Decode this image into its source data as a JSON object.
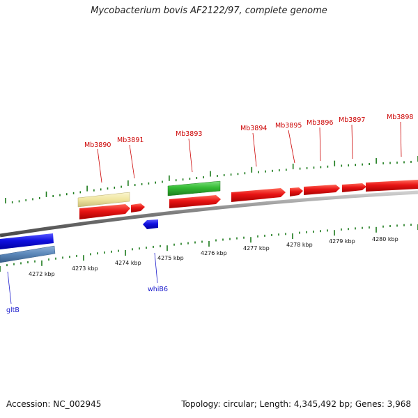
{
  "title": "Mycobacterium bovis AF2122/97, complete genome",
  "footer": {
    "accession": "Accession: NC_002945",
    "topology": "Topology: circular; Length: 4,345,492 bp; Genes: 3,968"
  },
  "colors": {
    "forward_gene": "#e01010",
    "reverse_gene": "#1010dd",
    "label_forward": "#cc0000",
    "label_reverse": "#1a1acc",
    "tick": "#1a7a1a",
    "backbone": "#808080",
    "yellow_feature": "#f0e6a0",
    "green_feature": "#33bb33",
    "steel_feature": "#5a86b8"
  },
  "scale": {
    "kbp_labels": [
      "4272 kbp",
      "4273 kbp",
      "4274 kbp",
      "4275 kbp",
      "4276 kbp",
      "4277 kbp",
      "4278 kbp",
      "4279 kbp",
      "4280 kbp"
    ]
  },
  "genes": [
    {
      "label": "Mb3890",
      "strand": "forward"
    },
    {
      "label": "Mb3891",
      "strand": "forward"
    },
    {
      "label": "Mb3893",
      "strand": "forward"
    },
    {
      "label": "Mb3894",
      "strand": "forward"
    },
    {
      "label": "Mb3895",
      "strand": "forward"
    },
    {
      "label": "Mb3896",
      "strand": "forward"
    },
    {
      "label": "Mb3897",
      "strand": "forward"
    },
    {
      "label": "Mb3898",
      "strand": "forward"
    },
    {
      "label": "gltB",
      "strand": "reverse"
    },
    {
      "label": "whiB6",
      "strand": "reverse"
    }
  ]
}
